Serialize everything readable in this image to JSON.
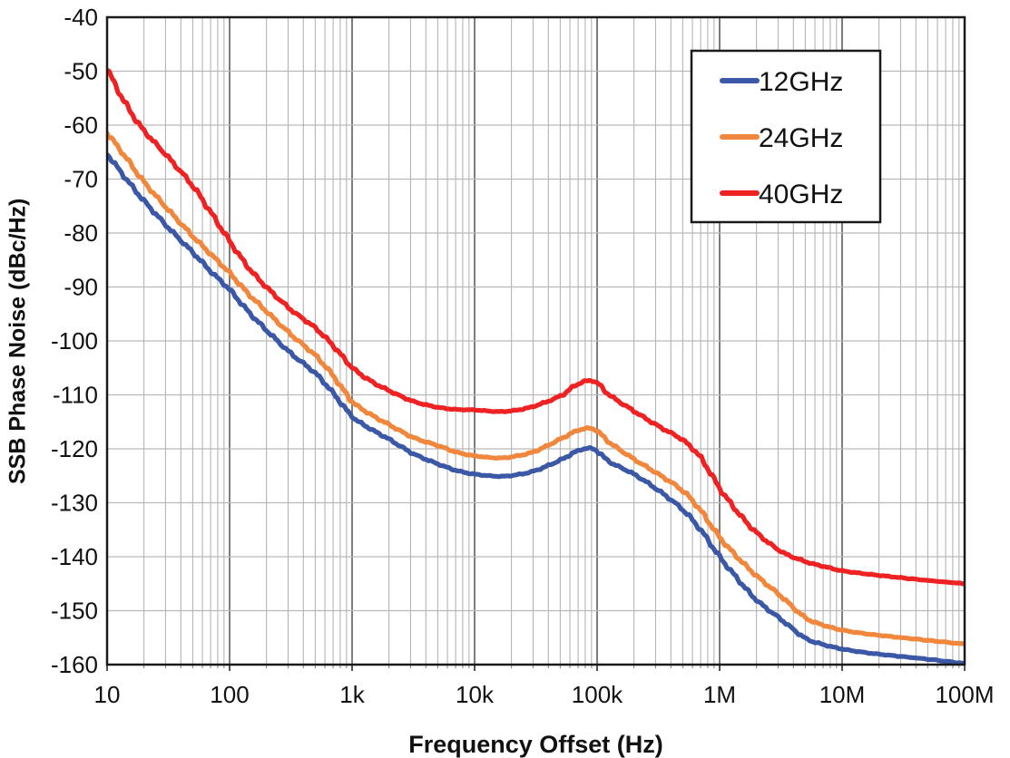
{
  "chart_data": {
    "type": "line",
    "title": "",
    "xlabel": "Frequency Offset (Hz)",
    "ylabel": "SSB Phase Noise (dBc/Hz)",
    "x_scale": "log",
    "x_range_hz": [
      10,
      100000000
    ],
    "x_tick_labels": [
      "10",
      "100",
      "1k",
      "10k",
      "100k",
      "1M",
      "10M",
      "100M"
    ],
    "ylim": [
      -160,
      -40
    ],
    "y_tick_step": 10,
    "y_tick_labels": [
      "-40",
      "-50",
      "-60",
      "-70",
      "-80",
      "-90",
      "-100",
      "-110",
      "-120",
      "-130",
      "-140",
      "-150",
      "-160"
    ],
    "grid": true,
    "legend_position": "top-right",
    "series": [
      {
        "name": "12GHz",
        "color": "#3B58A7",
        "points_logf_db": [
          [
            1,
            -65.3
          ],
          [
            1.15,
            -69.8
          ],
          [
            1.3,
            -74
          ],
          [
            1.5,
            -79
          ],
          [
            1.7,
            -83.6
          ],
          [
            1.85,
            -87.2
          ],
          [
            2,
            -90.5
          ],
          [
            2.15,
            -94.5
          ],
          [
            2.3,
            -98
          ],
          [
            2.5,
            -102.3
          ],
          [
            2.7,
            -106
          ],
          [
            2.85,
            -109.8
          ],
          [
            3,
            -114
          ],
          [
            3.15,
            -116.3
          ],
          [
            3.3,
            -118.2
          ],
          [
            3.5,
            -120.9
          ],
          [
            3.7,
            -122.8
          ],
          [
            3.85,
            -124
          ],
          [
            4,
            -124.7
          ],
          [
            4.2,
            -125.1
          ],
          [
            4.35,
            -124.8
          ],
          [
            4.5,
            -124
          ],
          [
            4.7,
            -122.1
          ],
          [
            4.82,
            -120.6
          ],
          [
            4.92,
            -119.9
          ],
          [
            5,
            -120.4
          ],
          [
            5.1,
            -122.4
          ],
          [
            5.3,
            -124.7
          ],
          [
            5.5,
            -127.7
          ],
          [
            5.7,
            -131.3
          ],
          [
            5.85,
            -135.2
          ],
          [
            6,
            -140
          ],
          [
            6.15,
            -144.2
          ],
          [
            6.3,
            -148
          ],
          [
            6.5,
            -151.6
          ],
          [
            6.7,
            -155.1
          ],
          [
            6.85,
            -156.3
          ],
          [
            7,
            -157.1
          ],
          [
            7.2,
            -157.8
          ],
          [
            7.4,
            -158.3
          ],
          [
            7.7,
            -159
          ],
          [
            8,
            -159.8
          ]
        ]
      },
      {
        "name": "24GHz",
        "color": "#F0873C",
        "points_logf_db": [
          [
            1,
            -61.4
          ],
          [
            1.15,
            -65.9
          ],
          [
            1.3,
            -70.5
          ],
          [
            1.5,
            -75.7
          ],
          [
            1.7,
            -80.6
          ],
          [
            1.85,
            -84
          ],
          [
            2,
            -87.4
          ],
          [
            2.15,
            -91.2
          ],
          [
            2.3,
            -94.5
          ],
          [
            2.5,
            -98.8
          ],
          [
            2.7,
            -102.7
          ],
          [
            2.85,
            -106.6
          ],
          [
            3,
            -111.2
          ],
          [
            3.15,
            -113.6
          ],
          [
            3.3,
            -115.5
          ],
          [
            3.5,
            -117.9
          ],
          [
            3.7,
            -119.4
          ],
          [
            3.85,
            -120.6
          ],
          [
            4,
            -121.3
          ],
          [
            4.2,
            -121.7
          ],
          [
            4.35,
            -121.3
          ],
          [
            4.5,
            -120.4
          ],
          [
            4.7,
            -118.2
          ],
          [
            4.82,
            -116.8
          ],
          [
            4.92,
            -116.2
          ],
          [
            5,
            -116.7
          ],
          [
            5.1,
            -118.8
          ],
          [
            5.3,
            -121.9
          ],
          [
            5.5,
            -124.7
          ],
          [
            5.7,
            -127.8
          ],
          [
            5.85,
            -131.6
          ],
          [
            6,
            -136.4
          ],
          [
            6.15,
            -140.2
          ],
          [
            6.3,
            -143.5
          ],
          [
            6.5,
            -147.3
          ],
          [
            6.7,
            -151.3
          ],
          [
            6.85,
            -152.7
          ],
          [
            7,
            -153.6
          ],
          [
            7.2,
            -154.3
          ],
          [
            7.4,
            -154.8
          ],
          [
            7.7,
            -155.5
          ],
          [
            8,
            -156.2
          ]
        ]
      },
      {
        "name": "40GHz",
        "color": "#EE2222",
        "points_logf_db": [
          [
            1,
            -49.5
          ],
          [
            1.1,
            -54
          ],
          [
            1.2,
            -57.8
          ],
          [
            1.3,
            -61
          ],
          [
            1.5,
            -66
          ],
          [
            1.7,
            -71.3
          ],
          [
            1.85,
            -76.3
          ],
          [
            2,
            -81.5
          ],
          [
            2.15,
            -86.3
          ],
          [
            2.3,
            -90
          ],
          [
            2.5,
            -94.2
          ],
          [
            2.7,
            -97.6
          ],
          [
            2.85,
            -101
          ],
          [
            3,
            -104.9
          ],
          [
            3.15,
            -107.4
          ],
          [
            3.3,
            -109.2
          ],
          [
            3.5,
            -111.2
          ],
          [
            3.7,
            -112.3
          ],
          [
            3.85,
            -112.7
          ],
          [
            4,
            -112.8
          ],
          [
            4.2,
            -113.1
          ],
          [
            4.35,
            -112.8
          ],
          [
            4.5,
            -112
          ],
          [
            4.7,
            -110.2
          ],
          [
            4.82,
            -108.3
          ],
          [
            4.92,
            -107.4
          ],
          [
            5,
            -107.8
          ],
          [
            5.1,
            -110
          ],
          [
            5.3,
            -113
          ],
          [
            5.5,
            -115.8
          ],
          [
            5.7,
            -118.4
          ],
          [
            5.85,
            -121.8
          ],
          [
            6,
            -127.3
          ],
          [
            6.15,
            -131.8
          ],
          [
            6.3,
            -135.5
          ],
          [
            6.5,
            -139
          ],
          [
            6.7,
            -140.9
          ],
          [
            6.85,
            -141.8
          ],
          [
            7,
            -142.6
          ],
          [
            7.2,
            -143.2
          ],
          [
            7.4,
            -143.7
          ],
          [
            7.7,
            -144.4
          ],
          [
            8,
            -145
          ]
        ]
      }
    ]
  },
  "colors": {
    "background": "#ffffff",
    "plot_border": "#1a1a1a",
    "grid_minor": "#adadad",
    "grid_major": "#7d7d7d",
    "grid_horizontal": "#b9b9b9",
    "text": "#111111"
  }
}
